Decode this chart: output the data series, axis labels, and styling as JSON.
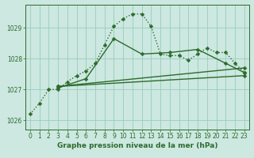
{
  "xlabel": "Graphe pression niveau de la mer (hPa)",
  "bg_color": "#cce8e0",
  "grid_color": "#99ccbb",
  "line_color": "#2d6a2d",
  "ylim": [
    1025.7,
    1029.75
  ],
  "yticks": [
    1026,
    1027,
    1028,
    1029
  ],
  "xlim": [
    -0.5,
    23.5
  ],
  "xticks": [
    0,
    1,
    2,
    3,
    4,
    5,
    6,
    7,
    8,
    9,
    10,
    11,
    12,
    13,
    14,
    15,
    16,
    17,
    18,
    19,
    20,
    21,
    22,
    23
  ],
  "series": [
    {
      "x": [
        0,
        1,
        2,
        3,
        4,
        5,
        6,
        7,
        8,
        9,
        10,
        11,
        12,
        13,
        14,
        15,
        16,
        17,
        18,
        19,
        20,
        21,
        22,
        23
      ],
      "y": [
        1026.2,
        1026.55,
        1027.0,
        1027.0,
        1027.25,
        1027.45,
        1027.6,
        1027.85,
        1028.45,
        1029.05,
        1029.3,
        1029.45,
        1029.45,
        1029.05,
        1028.15,
        1028.1,
        1028.1,
        1027.95,
        1028.15,
        1028.35,
        1028.2,
        1028.2,
        1027.85,
        1027.55
      ],
      "style": "dotted",
      "marker": "D",
      "markersize": 2.5,
      "linewidth": 1.0
    },
    {
      "x": [
        3,
        6,
        9,
        12,
        15,
        18,
        21,
        23
      ],
      "y": [
        1027.05,
        1027.35,
        1028.65,
        1028.15,
        1028.2,
        1028.3,
        1027.85,
        1027.55
      ],
      "style": "solid",
      "marker": "D",
      "markersize": 2.5,
      "linewidth": 1.0
    },
    {
      "x": [
        3,
        23
      ],
      "y": [
        1027.1,
        1027.45
      ],
      "style": "solid",
      "marker": "D",
      "markersize": 2.5,
      "linewidth": 1.0
    },
    {
      "x": [
        3,
        23
      ],
      "y": [
        1027.1,
        1027.7
      ],
      "style": "solid",
      "marker": "D",
      "markersize": 2.5,
      "linewidth": 1.0
    }
  ],
  "tick_fontsize": 5.5,
  "label_fontsize": 6.5,
  "tick_color": "#2d6a2d",
  "label_color": "#2d6a2d"
}
